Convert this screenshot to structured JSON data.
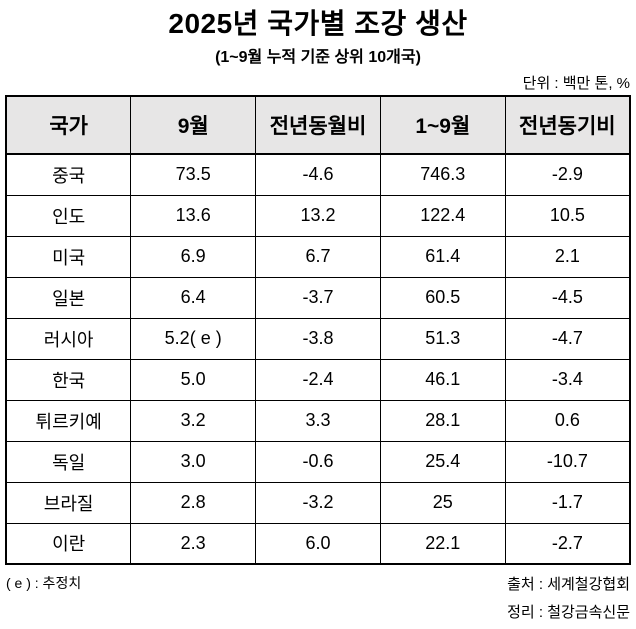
{
  "title": "2025년 국가별 조강 생산",
  "subtitle": "(1~9월 누적 기준 상위 10개국)",
  "unit_note": "단위 : 백만 톤, %",
  "footnote": "( e ) : 추정치",
  "source_line": "출처 : 세계철강협회",
  "credit_line": "정리 : 철강금속신문",
  "chart_data": {
    "type": "table",
    "title": "2025년 국가별 조강 생산",
    "subtitle": "(1~9월 누적 기준 상위 10개국)",
    "unit": "백만 톤, %",
    "header_bg": "#e7e6e6",
    "border_color": "#000000",
    "columns": [
      "국가",
      "9월",
      "전년동월비",
      "1~9월",
      "전년동기비"
    ],
    "rows": [
      [
        "중국",
        "73.5",
        "-4.6",
        "746.3",
        "-2.9"
      ],
      [
        "인도",
        "13.6",
        "13.2",
        "122.4",
        "10.5"
      ],
      [
        "미국",
        "6.9",
        "6.7",
        "61.4",
        "2.1"
      ],
      [
        "일본",
        "6.4",
        "-3.7",
        "60.5",
        "-4.5"
      ],
      [
        "러시아",
        "5.2( e )",
        "-3.8",
        "51.3",
        "-4.7"
      ],
      [
        "한국",
        "5.0",
        "-2.4",
        "46.1",
        "-3.4"
      ],
      [
        "튀르키예",
        "3.2",
        "3.3",
        "28.1",
        "0.6"
      ],
      [
        "독일",
        "3.0",
        "-0.6",
        "25.4",
        "-10.7"
      ],
      [
        "브라질",
        "2.8",
        "-3.2",
        "25",
        "-1.7"
      ],
      [
        "이란",
        "2.3",
        "6.0",
        "22.1",
        "-2.7"
      ]
    ]
  }
}
